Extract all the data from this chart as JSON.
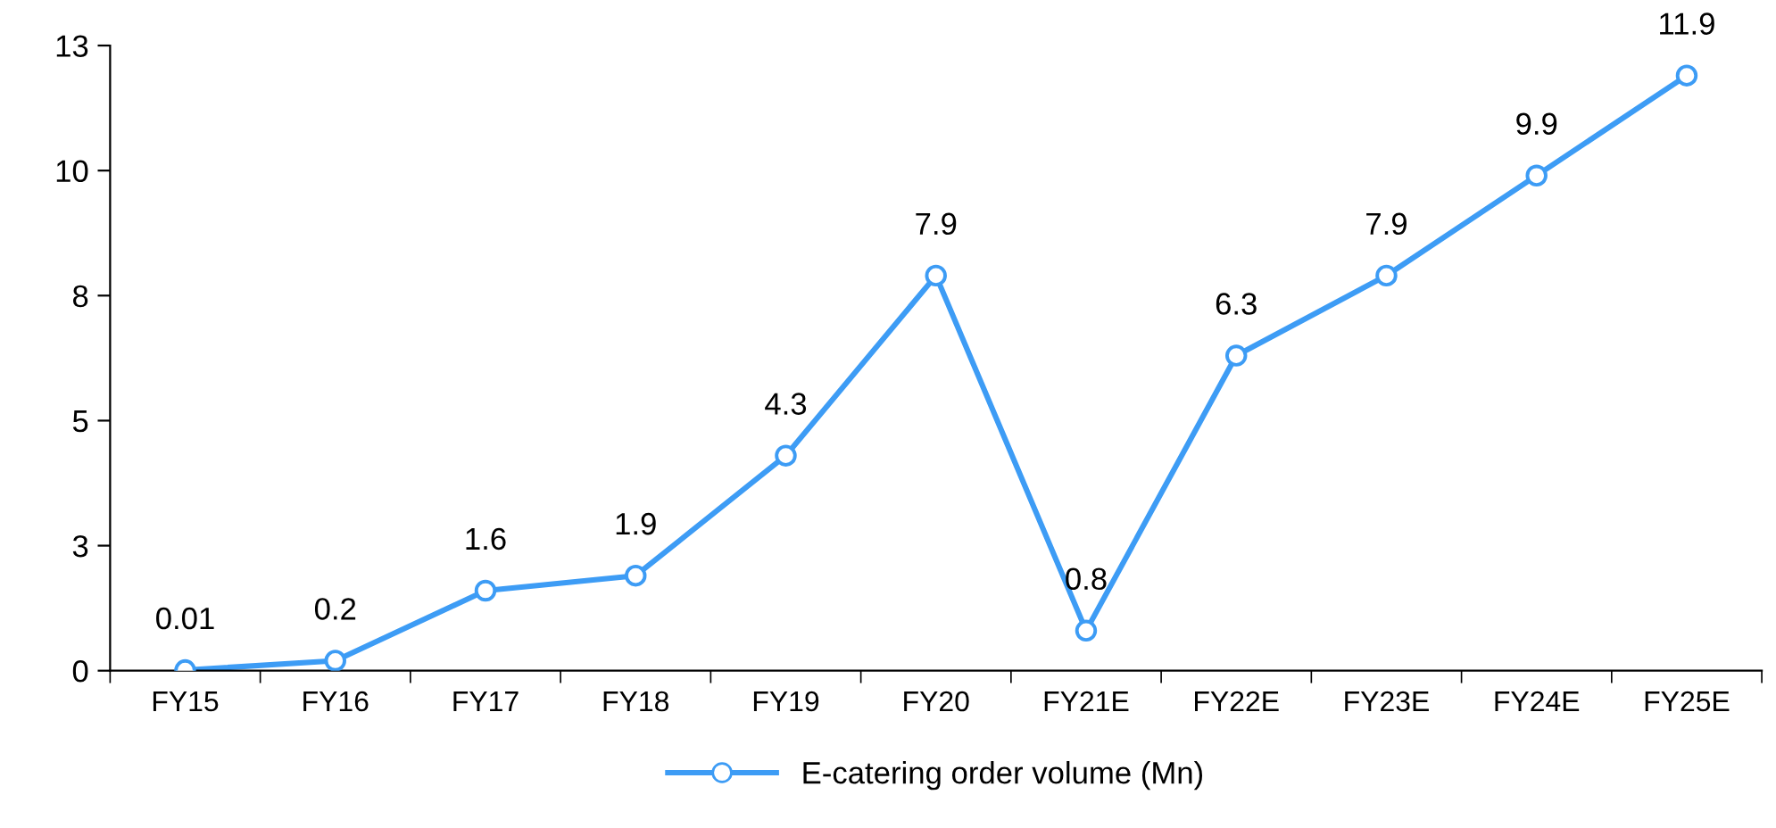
{
  "chart_data": {
    "type": "line",
    "categories": [
      "FY15",
      "FY16",
      "FY17",
      "FY18",
      "FY19",
      "FY20",
      "FY21E",
      "FY22E",
      "FY23E",
      "FY24E",
      "FY25E"
    ],
    "series": [
      {
        "name": "E-catering order volume (Mn)",
        "color": "#3d9cf5",
        "values": [
          0.01,
          0.2,
          1.6,
          1.9,
          4.3,
          7.9,
          0.8,
          6.3,
          7.9,
          9.9,
          11.9
        ]
      }
    ],
    "ylim": [
      0,
      12.5
    ],
    "yticks": [
      0,
      {
        "value": 2.5,
        "label": "3"
      },
      5,
      {
        "value": 7.5,
        "label": "8"
      },
      10,
      {
        "value": 12.5,
        "label": "13"
      }
    ],
    "data_labels": true,
    "marker": "circle",
    "line_style": "solid",
    "legend": "bottom",
    "grid": false
  }
}
